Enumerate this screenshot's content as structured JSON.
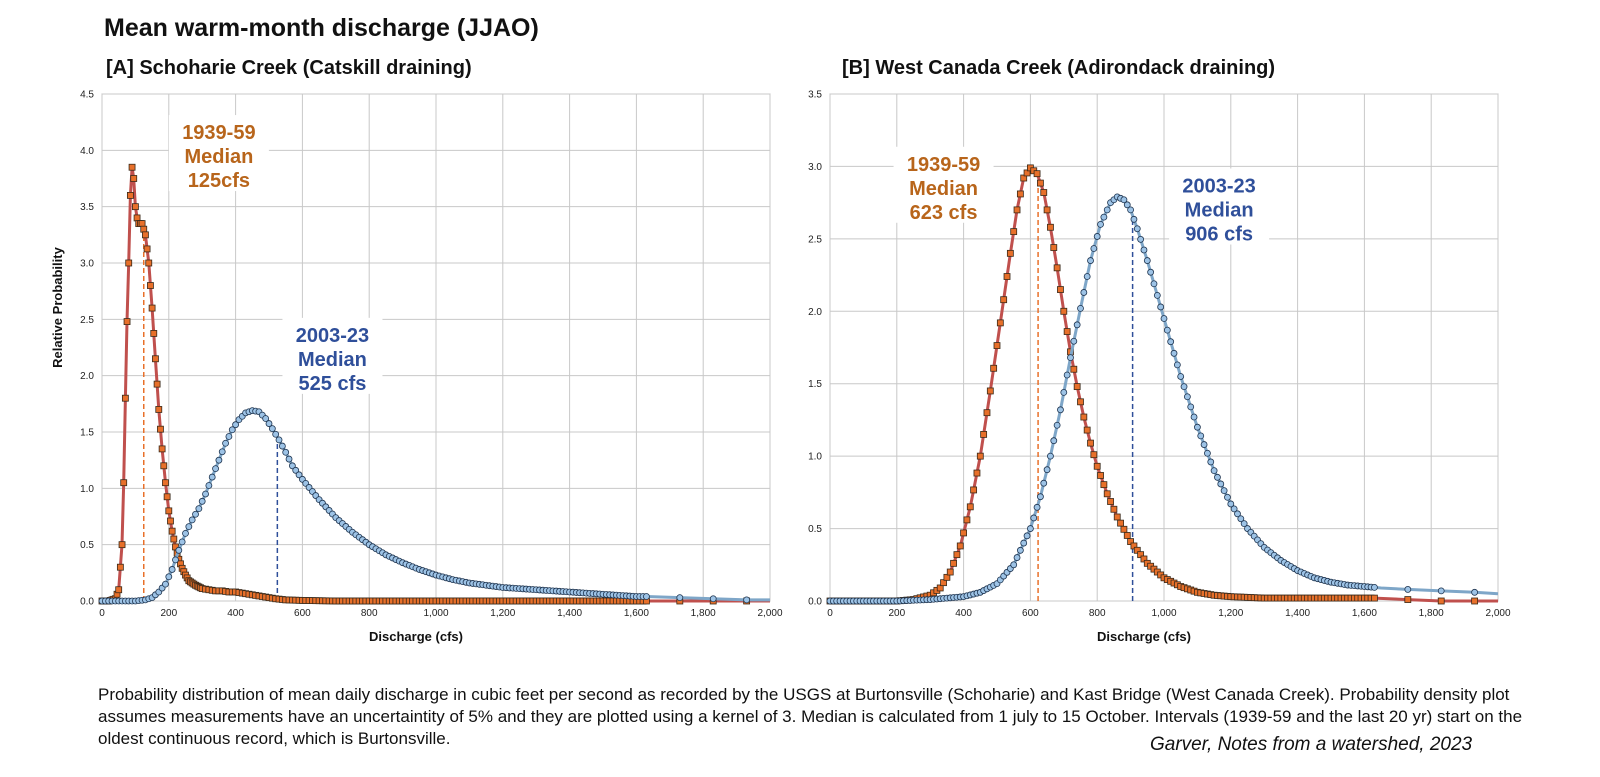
{
  "figure": {
    "title": "Mean warm-month discharge (JJAO)",
    "caption": "Probability distribution of mean daily discharge in cubic feet per second as recorded by the USGS at Burtonsville (Schoharie) and Kast Bridge (West Canada Creek).  Probability density plot assumes measurements have an uncertaintity of 5% and they are plotted using a kernel of 3.  Median is calculated from 1 july to 15 October. Intervals (1939-59 and the last 20 yr) start on the oldest continuous record, which is Burtonsville.",
    "credit": "Garver, Notes from a watershed, 2023"
  },
  "colors": {
    "old_line": "#c0504d",
    "old_marker": "#e8702a",
    "old_text": "#b8651b",
    "new_line": "#7ea6c8",
    "new_marker": "#9dc3e6",
    "new_text": "#2f4f9a",
    "grid": "#c8c8c8"
  },
  "chart_data": [
    {
      "type": "line",
      "title": "[A] Schoharie Creek (Catskill draining)",
      "xlabel": "Discharge (cfs)",
      "ylabel": "Relative Probability",
      "xlim": [
        0,
        2000
      ],
      "ylim": [
        0,
        4.5
      ],
      "xticks": [
        0,
        200,
        400,
        600,
        800,
        1000,
        1200,
        1400,
        1600,
        1800,
        2000
      ],
      "xtick_labels": [
        "0",
        "200",
        "400",
        "600",
        "800",
        "1,000",
        "1,200",
        "1,400",
        "1,600",
        "1,800",
        "2,000"
      ],
      "yticks": [
        0,
        0.5,
        1,
        1.5,
        2,
        2.5,
        3,
        3.5,
        4,
        4.5
      ],
      "ytick_labels": [
        "0.0",
        "0.5",
        "1.0",
        "1.5",
        "2.0",
        "2.5",
        "3.0",
        "3.5",
        "4.0",
        "4.5"
      ],
      "grid": true,
      "series": [
        {
          "key": "old",
          "marker": "square",
          "points": [
            [
              0,
              0
            ],
            [
              20,
              0
            ],
            [
              40,
              0.02
            ],
            [
              50,
              0.1
            ],
            [
              60,
              0.5
            ],
            [
              65,
              1.05
            ],
            [
              70,
              1.8
            ],
            [
              75,
              2.48
            ],
            [
              80,
              3.0
            ],
            [
              85,
              3.6
            ],
            [
              90,
              3.85
            ],
            [
              95,
              3.75
            ],
            [
              100,
              3.5
            ],
            [
              105,
              3.4
            ],
            [
              110,
              3.35
            ],
            [
              120,
              3.35
            ],
            [
              130,
              3.25
            ],
            [
              140,
              3.0
            ],
            [
              150,
              2.6
            ],
            [
              160,
              2.15
            ],
            [
              170,
              1.7
            ],
            [
              180,
              1.35
            ],
            [
              190,
              1.05
            ],
            [
              200,
              0.8
            ],
            [
              210,
              0.62
            ],
            [
              220,
              0.48
            ],
            [
              230,
              0.37
            ],
            [
              240,
              0.29
            ],
            [
              250,
              0.23
            ],
            [
              260,
              0.18
            ],
            [
              280,
              0.14
            ],
            [
              300,
              0.11
            ],
            [
              320,
              0.1
            ],
            [
              340,
              0.09
            ],
            [
              360,
              0.09
            ],
            [
              380,
              0.08
            ],
            [
              400,
              0.08
            ],
            [
              420,
              0.07
            ],
            [
              440,
              0.06
            ],
            [
              460,
              0.05
            ],
            [
              480,
              0.04
            ],
            [
              500,
              0.03
            ],
            [
              520,
              0.02
            ],
            [
              550,
              0.01
            ],
            [
              600,
              0.005
            ],
            [
              700,
              0
            ],
            [
              800,
              0
            ],
            [
              1000,
              0
            ],
            [
              1200,
              0
            ],
            [
              1400,
              0
            ],
            [
              1600,
              0
            ],
            [
              1730,
              0
            ],
            [
              1830,
              0
            ],
            [
              1930,
              0
            ],
            [
              2000,
              0
            ]
          ]
        },
        {
          "key": "new",
          "marker": "circle",
          "points": [
            [
              0,
              0
            ],
            [
              50,
              0
            ],
            [
              100,
              0
            ],
            [
              130,
              0.01
            ],
            [
              150,
              0.03
            ],
            [
              170,
              0.08
            ],
            [
              190,
              0.15
            ],
            [
              210,
              0.28
            ],
            [
              230,
              0.45
            ],
            [
              250,
              0.6
            ],
            [
              270,
              0.72
            ],
            [
              290,
              0.82
            ],
            [
              310,
              0.95
            ],
            [
              330,
              1.1
            ],
            [
              350,
              1.25
            ],
            [
              370,
              1.4
            ],
            [
              390,
              1.52
            ],
            [
              410,
              1.61
            ],
            [
              430,
              1.67
            ],
            [
              450,
              1.69
            ],
            [
              470,
              1.68
            ],
            [
              490,
              1.62
            ],
            [
              510,
              1.53
            ],
            [
              530,
              1.43
            ],
            [
              550,
              1.32
            ],
            [
              570,
              1.2
            ],
            [
              600,
              1.08
            ],
            [
              650,
              0.9
            ],
            [
              700,
              0.74
            ],
            [
              750,
              0.61
            ],
            [
              800,
              0.5
            ],
            [
              850,
              0.41
            ],
            [
              900,
              0.34
            ],
            [
              950,
              0.28
            ],
            [
              1000,
              0.23
            ],
            [
              1050,
              0.19
            ],
            [
              1100,
              0.16
            ],
            [
              1150,
              0.14
            ],
            [
              1200,
              0.12
            ],
            [
              1250,
              0.11
            ],
            [
              1300,
              0.1
            ],
            [
              1350,
              0.09
            ],
            [
              1400,
              0.08
            ],
            [
              1450,
              0.07
            ],
            [
              1500,
              0.06
            ],
            [
              1550,
              0.05
            ],
            [
              1600,
              0.04
            ],
            [
              1630,
              0.04
            ],
            [
              1730,
              0.03
            ],
            [
              1830,
              0.02
            ],
            [
              1930,
              0.01
            ],
            [
              2000,
              0.01
            ]
          ]
        }
      ],
      "medians": [
        {
          "key": "old",
          "x": 125
        },
        {
          "key": "new",
          "x": 525
        }
      ],
      "annotations": [
        {
          "key": "old",
          "lines": [
            "1939-59",
            "Median",
            "125cfs"
          ],
          "at": [
            350,
            4.1
          ]
        },
        {
          "key": "new",
          "lines": [
            "2003-23",
            "Median",
            "525 cfs"
          ],
          "at": [
            690,
            2.3
          ]
        }
      ]
    },
    {
      "type": "line",
      "title": "[B] West Canada Creek (Adirondack draining)",
      "xlabel": "Discharge (cfs)",
      "ylabel": "",
      "xlim": [
        0,
        2000
      ],
      "ylim": [
        0,
        3.5
      ],
      "xticks": [
        0,
        200,
        400,
        600,
        800,
        1000,
        1200,
        1400,
        1600,
        1800,
        2000
      ],
      "xtick_labels": [
        "0",
        "200",
        "400",
        "600",
        "800",
        "1,000",
        "1,200",
        "1,400",
        "1,600",
        "1,800",
        "2,000"
      ],
      "yticks": [
        0,
        0.5,
        1,
        1.5,
        2,
        2.5,
        3,
        3.5
      ],
      "ytick_labels": [
        "0.0",
        "0.5",
        "1.0",
        "1.5",
        "2.0",
        "2.5",
        "3.0",
        "3.5"
      ],
      "grid": true,
      "series": [
        {
          "key": "old",
          "marker": "square",
          "points": [
            [
              0,
              0
            ],
            [
              100,
              0
            ],
            [
              200,
              0
            ],
            [
              250,
              0.01
            ],
            [
              300,
              0.04
            ],
            [
              330,
              0.09
            ],
            [
              360,
              0.2
            ],
            [
              390,
              0.38
            ],
            [
              420,
              0.65
            ],
            [
              450,
              1.0
            ],
            [
              480,
              1.45
            ],
            [
              510,
              1.92
            ],
            [
              540,
              2.4
            ],
            [
              560,
              2.7
            ],
            [
              580,
              2.92
            ],
            [
              600,
              2.99
            ],
            [
              620,
              2.95
            ],
            [
              640,
              2.82
            ],
            [
              660,
              2.58
            ],
            [
              680,
              2.3
            ],
            [
              700,
              2.0
            ],
            [
              720,
              1.72
            ],
            [
              740,
              1.48
            ],
            [
              760,
              1.27
            ],
            [
              780,
              1.09
            ],
            [
              800,
              0.93
            ],
            [
              830,
              0.74
            ],
            [
              860,
              0.58
            ],
            [
              900,
              0.41
            ],
            [
              950,
              0.26
            ],
            [
              1000,
              0.16
            ],
            [
              1050,
              0.1
            ],
            [
              1100,
              0.06
            ],
            [
              1150,
              0.04
            ],
            [
              1200,
              0.03
            ],
            [
              1300,
              0.02
            ],
            [
              1400,
              0.02
            ],
            [
              1500,
              0.02
            ],
            [
              1630,
              0.02
            ],
            [
              1730,
              0.01
            ],
            [
              1830,
              0
            ],
            [
              1930,
              0
            ],
            [
              2000,
              0
            ]
          ]
        },
        {
          "key": "new",
          "marker": "circle",
          "points": [
            [
              0,
              0
            ],
            [
              100,
              0
            ],
            [
              200,
              0
            ],
            [
              300,
              0.01
            ],
            [
              400,
              0.03
            ],
            [
              450,
              0.06
            ],
            [
              500,
              0.12
            ],
            [
              550,
              0.25
            ],
            [
              600,
              0.5
            ],
            [
              630,
              0.72
            ],
            [
              660,
              1.0
            ],
            [
              690,
              1.32
            ],
            [
              720,
              1.68
            ],
            [
              750,
              2.02
            ],
            [
              780,
              2.35
            ],
            [
              810,
              2.6
            ],
            [
              840,
              2.75
            ],
            [
              860,
              2.79
            ],
            [
              880,
              2.77
            ],
            [
              900,
              2.7
            ],
            [
              920,
              2.57
            ],
            [
              950,
              2.35
            ],
            [
              1000,
              1.95
            ],
            [
              1050,
              1.55
            ],
            [
              1100,
              1.2
            ],
            [
              1150,
              0.9
            ],
            [
              1200,
              0.67
            ],
            [
              1250,
              0.5
            ],
            [
              1300,
              0.37
            ],
            [
              1350,
              0.28
            ],
            [
              1400,
              0.21
            ],
            [
              1450,
              0.16
            ],
            [
              1500,
              0.13
            ],
            [
              1550,
              0.11
            ],
            [
              1600,
              0.1
            ],
            [
              1650,
              0.09
            ],
            [
              1730,
              0.08
            ],
            [
              1830,
              0.07
            ],
            [
              1930,
              0.06
            ],
            [
              2000,
              0.05
            ]
          ]
        }
      ],
      "medians": [
        {
          "key": "old",
          "x": 623
        },
        {
          "key": "new",
          "x": 906
        }
      ],
      "annotations": [
        {
          "key": "old",
          "lines": [
            "1939-59",
            "Median",
            "623 cfs"
          ],
          "at": [
            340,
            2.97
          ]
        },
        {
          "key": "new",
          "lines": [
            "2003-23",
            "Median",
            "906 cfs"
          ],
          "at": [
            1165,
            2.82
          ]
        }
      ]
    }
  ]
}
